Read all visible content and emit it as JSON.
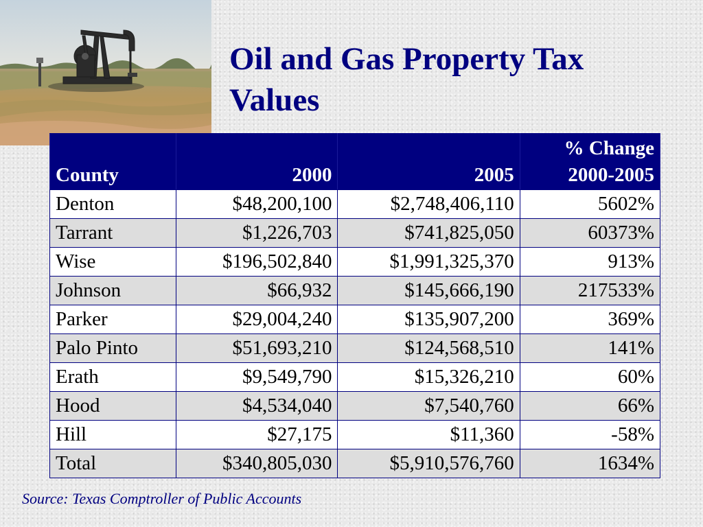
{
  "slide": {
    "title": "Oil and Gas Property Tax Values",
    "source": "Source: Texas Comptroller of  Public Accounts"
  },
  "table": {
    "headers": {
      "county": "County",
      "y2000": "2000",
      "y2005": "2005",
      "pct_line1": "% Change",
      "pct_line2": "2000-2005"
    },
    "rows": [
      {
        "county": "Denton",
        "v2000": "$48,200,100",
        "v2005": "$2,748,406,110",
        "pct": "5602%"
      },
      {
        "county": "Tarrant",
        "v2000": "$1,226,703",
        "v2005": "$741,825,050",
        "pct": "60373%"
      },
      {
        "county": "Wise",
        "v2000": "$196,502,840",
        "v2005": "$1,991,325,370",
        "pct": "913%"
      },
      {
        "county": "Johnson",
        "v2000": "$66,932",
        "v2005": "$145,666,190",
        "pct": "217533%"
      },
      {
        "county": "Parker",
        "v2000": "$29,004,240",
        "v2005": "$135,907,200",
        "pct": "369%"
      },
      {
        "county": "Palo Pinto",
        "v2000": "$51,693,210",
        "v2005": "$124,568,510",
        "pct": "141%"
      },
      {
        "county": "Erath",
        "v2000": "$9,549,790",
        "v2005": "$15,326,210",
        "pct": "60%"
      },
      {
        "county": "Hood",
        "v2000": "$4,534,040",
        "v2005": "$7,540,760",
        "pct": "66%"
      },
      {
        "county": "Hill",
        "v2000": "$27,175",
        "v2005": "$11,360",
        "pct": "-58%"
      },
      {
        "county": "Total",
        "v2000": "$340,805,030",
        "v2005": "$5,910,576,760",
        "pct": "1634%"
      }
    ]
  },
  "colors": {
    "title": "#000080",
    "header_bg": "#000080",
    "header_text": "#ffffff",
    "row_alt": "#dddddd",
    "source_text": "#000080"
  },
  "icons": {
    "photo": "oil-pump-jack-photo"
  }
}
